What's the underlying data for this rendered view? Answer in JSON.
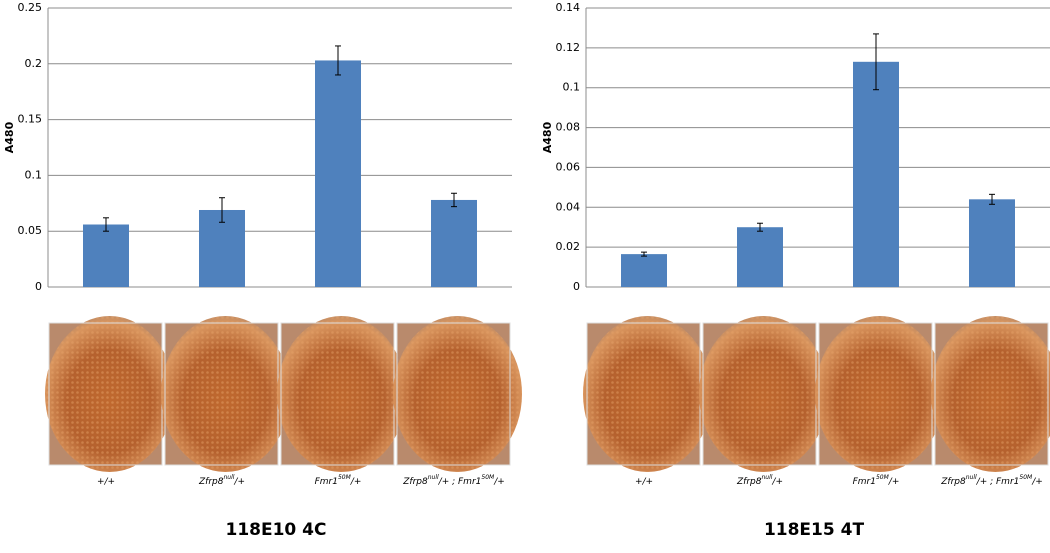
{
  "chart_data": [
    {
      "type": "bar",
      "title": "118E10 4C",
      "ylabel": "A480",
      "categories": [
        [
          {
            "text": "+/+"
          }
        ],
        [
          {
            "text": "Zfrp8"
          },
          {
            "text": "null",
            "sup": true
          },
          {
            "text": "/+"
          }
        ],
        [
          {
            "text": "Fmr1"
          },
          {
            "text": "50M",
            "sup": true
          },
          {
            "text": "/+"
          }
        ],
        [
          {
            "text": "Zfrp8"
          },
          {
            "text": "null",
            "sup": true
          },
          {
            "text": "/+ ; Fmr1"
          },
          {
            "text": "50M",
            "sup": true
          },
          {
            "text": "/+"
          }
        ]
      ],
      "values": [
        0.056,
        0.069,
        0.203,
        0.078
      ],
      "errors": [
        0.006,
        0.011,
        0.013,
        0.006
      ],
      "color": "#4f81bd",
      "ylim": [
        0,
        0.25
      ],
      "yticks": [
        0,
        0.05,
        0.1,
        0.15,
        0.2,
        0.25
      ],
      "grid": true
    },
    {
      "type": "bar",
      "title": "118E15 4T",
      "ylabel": "A480",
      "categories": [
        [
          {
            "text": "+/+"
          }
        ],
        [
          {
            "text": "Zfrp8"
          },
          {
            "text": "null",
            "sup": true
          },
          {
            "text": "/+"
          }
        ],
        [
          {
            "text": "Fmr1"
          },
          {
            "text": "50M",
            "sup": true
          },
          {
            "text": "/+"
          }
        ],
        [
          {
            "text": "Zfrp8"
          },
          {
            "text": "null",
            "sup": true
          },
          {
            "text": "/+ ; Fmr1"
          },
          {
            "text": "50M",
            "sup": true
          },
          {
            "text": "/+"
          }
        ]
      ],
      "values": [
        0.0165,
        0.03,
        0.113,
        0.044
      ],
      "errors": [
        0.001,
        0.002,
        0.014,
        0.0025
      ],
      "color": "#4f81bd",
      "ylim": [
        0,
        0.14
      ],
      "yticks": [
        0,
        0.02,
        0.04,
        0.06,
        0.08,
        0.1,
        0.12,
        0.14
      ],
      "grid": true
    }
  ]
}
